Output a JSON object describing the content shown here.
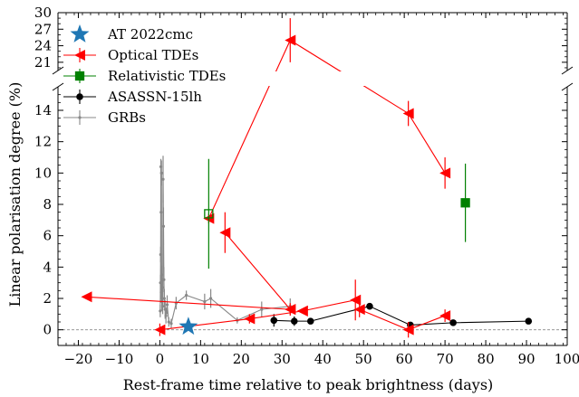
{
  "chart_data": {
    "type": "scatter",
    "title": "",
    "xlabel": "Rest-frame time relative to peak brightness (days)",
    "ylabel": "Linear polarisation degree (%)",
    "xlim": [
      -25,
      100
    ],
    "ylim_lower": [
      -1,
      15.5
    ],
    "ylim_upper": [
      19.5,
      30
    ],
    "axis_break": "broken y-axis between 15.5 and 19.5",
    "x_ticks": [
      -20,
      -10,
      0,
      10,
      20,
      30,
      40,
      50,
      60,
      70,
      80,
      90,
      100
    ],
    "x_tick_labels": [
      "−20",
      "−10",
      "0",
      "10",
      "20",
      "30",
      "40",
      "50",
      "60",
      "70",
      "80",
      "90",
      "100"
    ],
    "y_ticks_lower": [
      0,
      2,
      4,
      6,
      8,
      10,
      12,
      14
    ],
    "y_ticks_upper": [
      21,
      24,
      27,
      30
    ],
    "y_tick_labels_upper": [
      "21",
      "24",
      "27",
      "30"
    ],
    "y_tick_labels_lower": [
      "0",
      "2",
      "4",
      "6",
      "8",
      "10",
      "12",
      "14"
    ],
    "zero_line": true,
    "grid": false,
    "legend_position": "top-left",
    "legend": [
      "AT 2022cmc",
      "Optical TDEs",
      "Relativistic TDEs",
      "ASASSN-15lh",
      "GRBs"
    ],
    "series": [
      {
        "name": "AT 2022cmc",
        "marker": "star",
        "color": "#1f77b4",
        "points": [
          {
            "x": 7,
            "y": 0.2,
            "err": 0
          }
        ]
      },
      {
        "name": "Optical TDEs",
        "marker": "triangle-left",
        "color": "#ff0000",
        "segments": [
          [
            {
              "x": 12,
              "y": 7.1,
              "err": 0.3
            },
            {
              "x": 32,
              "y": 25.0,
              "err": 4.0
            },
            {
              "x": 61,
              "y": 13.8,
              "err": 0.8
            },
            {
              "x": 70,
              "y": 10.0,
              "err": 1.0
            }
          ],
          [
            {
              "x": 16,
              "y": 6.2,
              "err": 1.3
            },
            {
              "x": 32,
              "y": 1.3,
              "err": 0.4
            }
          ],
          [
            {
              "x": -18,
              "y": 2.1,
              "err": 0.15
            },
            {
              "x": 32,
              "y": 1.3,
              "err": 0.2
            }
          ],
          [
            {
              "x": 35,
              "y": 1.2,
              "err": 0.1
            },
            {
              "x": 48,
              "y": 1.9,
              "err": 1.3
            }
          ],
          [
            {
              "x": 0,
              "y": 0.0,
              "err": 0.4
            },
            {
              "x": 22,
              "y": 0.7,
              "err": 0.3
            },
            {
              "x": 35,
              "y": 1.2,
              "err": 0.1
            }
          ],
          [
            {
              "x": 49,
              "y": 1.3,
              "err": 0.5
            },
            {
              "x": 61,
              "y": 0.0,
              "err": 0.5
            },
            {
              "x": 70,
              "y": 0.9,
              "err": 0.4
            }
          ]
        ]
      },
      {
        "name": "Relativistic TDEs",
        "marker": "square",
        "color": "#008000",
        "points": [
          {
            "x": 12,
            "y": 7.4,
            "err": 3.5,
            "open": true
          },
          {
            "x": 75,
            "y": 8.1,
            "err": 2.5,
            "open": false
          }
        ]
      },
      {
        "name": "ASASSN-15lh",
        "marker": "circle",
        "color": "#000000",
        "points": [
          {
            "x": 28,
            "y": 0.6,
            "err": 0.4
          },
          {
            "x": 33,
            "y": 0.55,
            "err": 0.3
          },
          {
            "x": 37,
            "y": 0.55,
            "err": 0.2
          },
          {
            "x": 51.5,
            "y": 1.5,
            "err": 0.2
          },
          {
            "x": 61.5,
            "y": 0.3,
            "err": 0.2
          },
          {
            "x": 72,
            "y": 0.45,
            "err": 0.1
          },
          {
            "x": 90.5,
            "y": 0.55,
            "err": 0.1
          }
        ]
      },
      {
        "name": "GRBs",
        "marker": "dot",
        "color": "#888888",
        "points": [
          {
            "x": 0.1,
            "y": 1.2,
            "err": 0.4
          },
          {
            "x": 0.15,
            "y": 3.0,
            "err": 0.5
          },
          {
            "x": 0.2,
            "y": 4.8,
            "err": 0.5
          },
          {
            "x": 0.25,
            "y": 10.4,
            "err": 0.5
          },
          {
            "x": 0.3,
            "y": 7.5,
            "err": 1.5
          },
          {
            "x": 0.35,
            "y": 2.4,
            "err": 0.5
          },
          {
            "x": 0.4,
            "y": 10.0,
            "err": 0.8
          },
          {
            "x": 0.45,
            "y": 3.5,
            "err": 0.6
          },
          {
            "x": 0.5,
            "y": 1.8,
            "err": 0.6
          },
          {
            "x": 0.6,
            "y": 2.7,
            "err": 0.6
          },
          {
            "x": 0.7,
            "y": 1.5,
            "err": 0.5
          },
          {
            "x": 0.8,
            "y": 9.6,
            "err": 1.5
          },
          {
            "x": 0.9,
            "y": 6.6,
            "err": 1.2
          },
          {
            "x": 1.0,
            "y": 3.2,
            "err": 0.8
          },
          {
            "x": 1.1,
            "y": 2.0,
            "err": 0.6
          },
          {
            "x": 1.3,
            "y": 1.3,
            "err": 0.6
          },
          {
            "x": 1.5,
            "y": 0.9,
            "err": 0.5
          },
          {
            "x": 1.8,
            "y": 1.6,
            "err": 0.6
          },
          {
            "x": 2.2,
            "y": 0.5,
            "err": 0.3
          },
          {
            "x": 2.8,
            "y": 0.4,
            "err": 0.3
          },
          {
            "x": 4,
            "y": 1.7,
            "err": 0.4
          },
          {
            "x": 6.5,
            "y": 2.2,
            "err": 0.3
          },
          {
            "x": 11,
            "y": 1.8,
            "err": 0.5
          },
          {
            "x": 12.5,
            "y": 2.0,
            "err": 0.6
          },
          {
            "x": 19,
            "y": 0.6,
            "err": 0.2
          },
          {
            "x": 25,
            "y": 1.3,
            "err": 0.5
          },
          {
            "x": 32,
            "y": 1.5,
            "err": 0.5
          }
        ]
      }
    ]
  }
}
